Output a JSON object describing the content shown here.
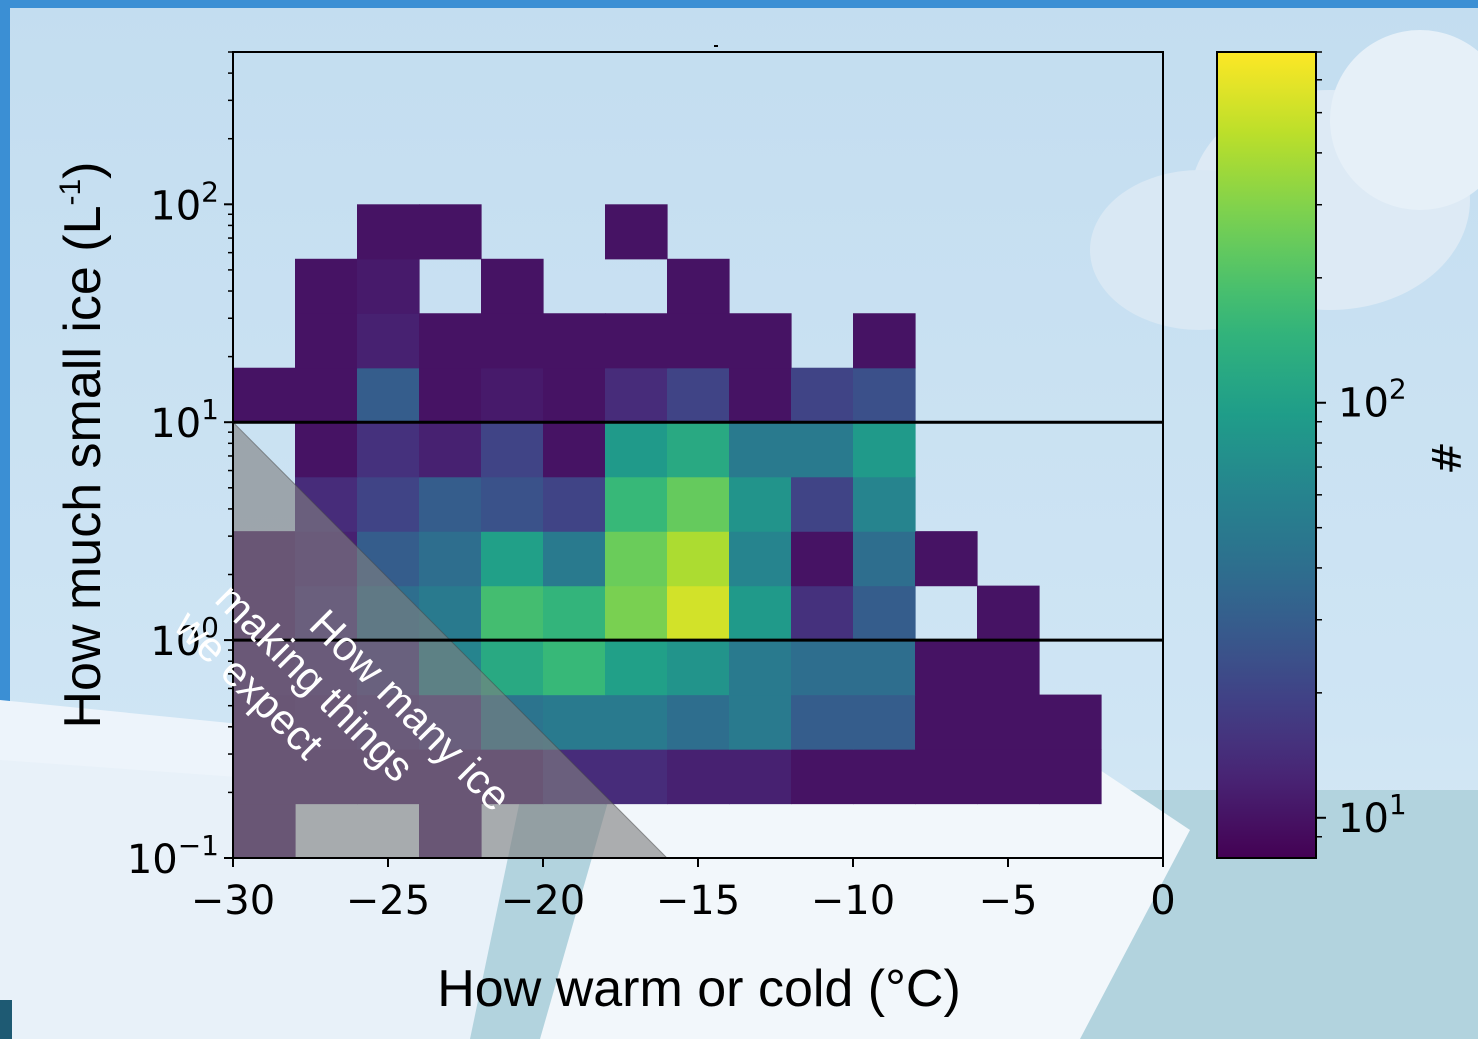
{
  "chart_data": {
    "type": "heatmap",
    "title": "",
    "xlabel": "How warm or cold (°C)",
    "ylabel_base": "How much small ice (L",
    "ylabel_sup": "-1",
    "ylabel_end": ")",
    "xlim": [
      -30,
      0
    ],
    "ylim": [
      0.1,
      500
    ],
    "yscale": "log",
    "x_ticks": [
      -30,
      -25,
      -20,
      -15,
      -10,
      -5,
      0
    ],
    "x_tick_labels": [
      "−30",
      "−25",
      "−20",
      "−15",
      "−10",
      "−5",
      "0"
    ],
    "y_ticks": [
      {
        "base": "10",
        "exp": "−1",
        "value": 0.1
      },
      {
        "base": "10",
        "exp": "0",
        "value": 1
      },
      {
        "base": "10",
        "exp": "1",
        "value": 10
      },
      {
        "base": "10",
        "exp": "2",
        "value": 100
      }
    ],
    "x_bin_edges": [
      -30,
      -28,
      -26,
      -24,
      -22,
      -20,
      -18,
      -16,
      -14,
      -12,
      -10,
      -8,
      -6,
      -4,
      -2,
      0
    ],
    "y_bin_edges": [
      0.1,
      0.1778,
      0.3162,
      0.5623,
      1.0,
      1.7783,
      3.1623,
      5.6234,
      10.0,
      17.783,
      31.623,
      56.234,
      100.0
    ],
    "counts": [
      [
        10,
        0,
        0,
        10,
        0,
        0,
        0,
        0,
        0,
        0,
        0,
        0,
        0,
        0,
        0
      ],
      [
        10,
        10,
        10,
        10,
        10,
        14,
        14,
        12,
        12,
        10,
        10,
        10,
        10,
        10,
        0
      ],
      [
        10,
        11,
        12,
        14,
        45,
        50,
        50,
        40,
        50,
        30,
        30,
        10,
        10,
        10,
        0
      ],
      [
        11,
        12,
        15,
        60,
        120,
        160,
        100,
        80,
        50,
        40,
        40,
        10,
        10,
        0,
        0
      ],
      [
        10,
        14,
        40,
        50,
        180,
        150,
        280,
        520,
        90,
        15,
        30,
        0,
        10,
        0,
        0
      ],
      [
        10,
        12,
        30,
        40,
        100,
        50,
        250,
        400,
        60,
        10,
        40,
        10,
        0,
        0,
        0
      ],
      [
        0,
        14,
        20,
        30,
        25,
        20,
        160,
        240,
        80,
        20,
        60,
        0,
        0,
        0,
        0
      ],
      [
        0,
        10,
        15,
        12,
        20,
        10,
        90,
        120,
        50,
        50,
        90,
        0,
        0,
        0,
        0
      ],
      [
        10,
        10,
        30,
        10,
        11,
        10,
        14,
        20,
        10,
        20,
        24,
        0,
        0,
        0,
        0
      ],
      [
        0,
        10,
        12,
        10,
        10,
        10,
        10,
        10,
        10,
        0,
        10,
        0,
        0,
        0,
        0
      ],
      [
        0,
        10,
        11,
        0,
        10,
        0,
        0,
        10,
        0,
        0,
        0,
        0,
        0,
        0,
        0
      ],
      [
        0,
        0,
        10,
        10,
        0,
        0,
        10,
        0,
        0,
        0,
        0,
        0,
        0,
        0,
        0
      ]
    ],
    "reference_lines_y": [
      1,
      10
    ],
    "colorbar": {
      "label": "#",
      "scale": "log",
      "range": [
        8,
        700
      ],
      "colormap": "viridis",
      "ticks": [
        {
          "base": "10",
          "exp": "1",
          "value": 10
        },
        {
          "base": "10",
          "exp": "2",
          "value": 100
        }
      ]
    },
    "annotation": {
      "lines": [
        "How many ice",
        "making things",
        "we expect"
      ]
    }
  }
}
